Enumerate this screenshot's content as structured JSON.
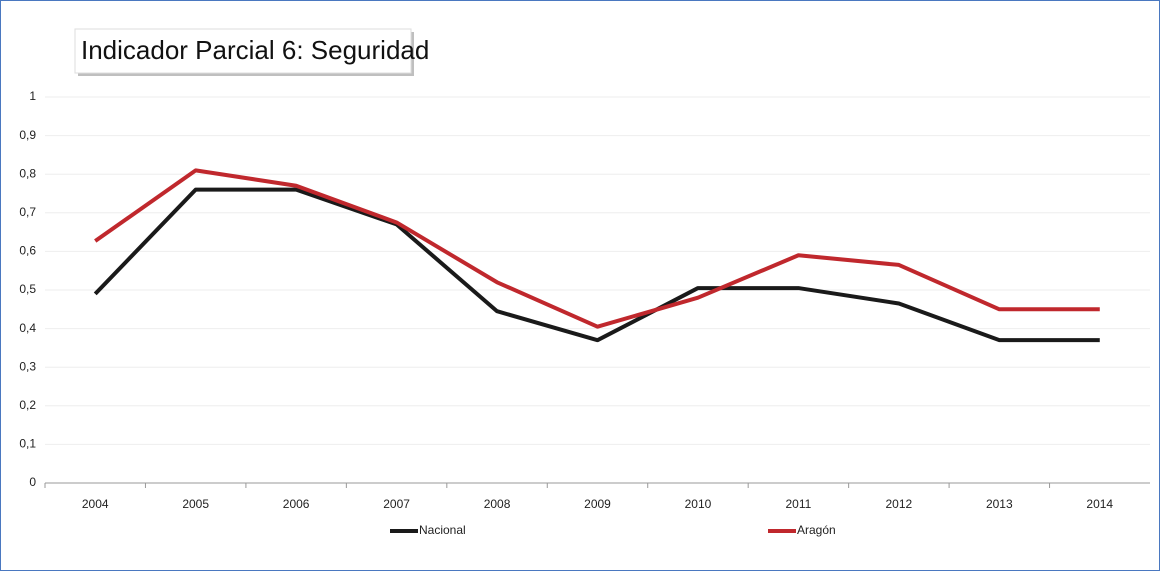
{
  "chart_data": {
    "type": "line",
    "title": "Indicador Parcial 6: Seguridad",
    "categories": [
      "2004",
      "2005",
      "2006",
      "2007",
      "2008",
      "2009",
      "2010",
      "2011",
      "2012",
      "2013",
      "2014"
    ],
    "series": [
      {
        "name": "Nacional",
        "color": "#1a1a1a",
        "values": [
          0.49,
          0.76,
          0.76,
          0.67,
          0.445,
          0.37,
          0.505,
          0.505,
          0.465,
          0.37,
          0.37
        ]
      },
      {
        "name": "Aragón",
        "color": "#c0282d",
        "values": [
          0.627,
          0.81,
          0.77,
          0.675,
          0.52,
          0.405,
          0.48,
          0.59,
          0.565,
          0.45,
          0.45
        ]
      }
    ],
    "ylim": [
      0,
      1
    ],
    "yticks": [
      0,
      {
        "value": 0.1,
        "label": "0,1"
      },
      {
        "value": 0.2,
        "label": "0,2"
      },
      {
        "value": 0.3,
        "label": "0,3"
      },
      {
        "value": 0.4,
        "label": "0,4"
      },
      {
        "value": 0.5,
        "label": "0,5"
      },
      {
        "value": 0.6,
        "label": "0,6"
      },
      {
        "value": 0.7,
        "label": "0,7"
      },
      {
        "value": 0.8,
        "label": "0,8"
      },
      {
        "value": 0.9,
        "label": "0,9"
      },
      1
    ],
    "grid": true,
    "legend": "bottom"
  }
}
